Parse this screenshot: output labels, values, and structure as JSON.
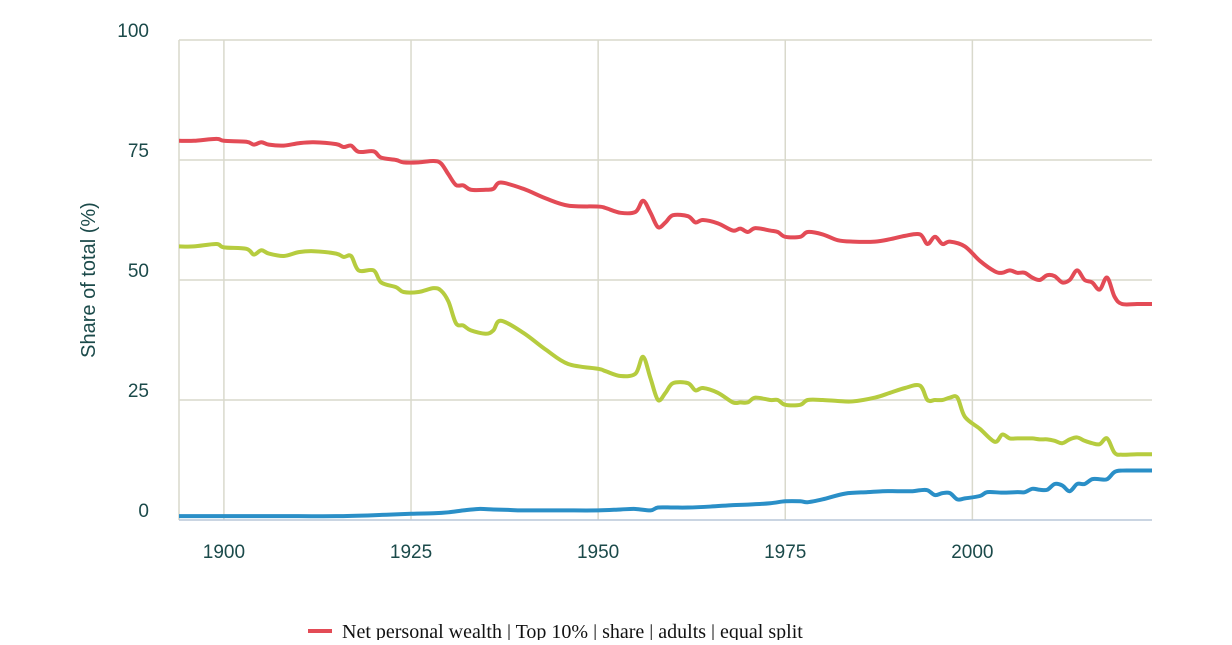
{
  "colors": {
    "text": "#1b4a4a",
    "grid": "#d9d9cc",
    "axis": "#b9c7d9",
    "legend_text": "#111111"
  },
  "chart_data": {
    "type": "line",
    "title": "",
    "xlabel": "",
    "ylabel": "Share of total (%)",
    "xlim": [
      1894,
      2024
    ],
    "ylim": [
      0,
      100
    ],
    "grid": true,
    "legend_position": "bottom",
    "x_ticks": [
      {
        "value": 1900,
        "label": "1900"
      },
      {
        "value": 1925,
        "label": "1925"
      },
      {
        "value": 1950,
        "label": "1950"
      },
      {
        "value": 1975,
        "label": "1975"
      },
      {
        "value": 2000,
        "label": "2000"
      }
    ],
    "y_ticks": [
      {
        "value": 0,
        "label": "0"
      },
      {
        "value": 25,
        "label": "25"
      },
      {
        "value": 50,
        "label": "50"
      },
      {
        "value": 75,
        "label": "75"
      },
      {
        "value": 100,
        "label": "100"
      }
    ],
    "legend": [
      {
        "label": "Net personal wealth | Top 10% | share | adults | equal split",
        "color": "#e34b56"
      }
    ],
    "series": [
      {
        "color": "#e34b56",
        "points": [
          [
            1894,
            79
          ],
          [
            1896,
            79
          ],
          [
            1899,
            79.4
          ],
          [
            1900,
            79
          ],
          [
            1903,
            78.8
          ],
          [
            1904,
            78.2
          ],
          [
            1905,
            78.7
          ],
          [
            1906,
            78.2
          ],
          [
            1908,
            78.0
          ],
          [
            1910,
            78.5
          ],
          [
            1912,
            78.7
          ],
          [
            1915,
            78.3
          ],
          [
            1916,
            77.7
          ],
          [
            1917,
            78.0
          ],
          [
            1918,
            76.7
          ],
          [
            1920,
            76.8
          ],
          [
            1921,
            75.5
          ],
          [
            1923,
            75.0
          ],
          [
            1924,
            74.5
          ],
          [
            1926,
            74.5
          ],
          [
            1928,
            74.8
          ],
          [
            1929,
            74.3
          ],
          [
            1930,
            72.0
          ],
          [
            1931,
            69.8
          ],
          [
            1932,
            69.7
          ],
          [
            1933,
            68.8
          ],
          [
            1935,
            68.8
          ],
          [
            1936,
            69.0
          ],
          [
            1937,
            70.3
          ],
          [
            1940,
            69.0
          ],
          [
            1943,
            67.0
          ],
          [
            1946,
            65.5
          ],
          [
            1950,
            65.3
          ],
          [
            1951,
            65.0
          ],
          [
            1953,
            64.0
          ],
          [
            1955,
            64.2
          ],
          [
            1956,
            66.5
          ],
          [
            1957,
            64.0
          ],
          [
            1958,
            61.0
          ],
          [
            1959,
            62.0
          ],
          [
            1960,
            63.5
          ],
          [
            1962,
            63.3
          ],
          [
            1963,
            62.0
          ],
          [
            1964,
            62.5
          ],
          [
            1966,
            61.8
          ],
          [
            1968,
            60.3
          ],
          [
            1969,
            60.7
          ],
          [
            1970,
            60.0
          ],
          [
            1971,
            60.8
          ],
          [
            1973,
            60.3
          ],
          [
            1974,
            60.0
          ],
          [
            1975,
            59.0
          ],
          [
            1977,
            59.0
          ],
          [
            1978,
            60.0
          ],
          [
            1980,
            59.5
          ],
          [
            1982,
            58.3
          ],
          [
            1984,
            58.0
          ],
          [
            1987,
            58.0
          ],
          [
            1989,
            58.5
          ],
          [
            1991,
            59.2
          ],
          [
            1993,
            59.5
          ],
          [
            1994,
            57.5
          ],
          [
            1995,
            59.0
          ],
          [
            1996,
            57.5
          ],
          [
            1997,
            58.0
          ],
          [
            1999,
            57.0
          ],
          [
            2001,
            54.0
          ],
          [
            2003,
            51.8
          ],
          [
            2004,
            51.5
          ],
          [
            2005,
            52.0
          ],
          [
            2006,
            51.5
          ],
          [
            2007,
            51.5
          ],
          [
            2008,
            50.5
          ],
          [
            2009,
            50.0
          ],
          [
            2010,
            51.0
          ],
          [
            2011,
            50.8
          ],
          [
            2012,
            49.5
          ],
          [
            2013,
            50.0
          ],
          [
            2014,
            52.0
          ],
          [
            2015,
            50.0
          ],
          [
            2016,
            49.5
          ],
          [
            2017,
            48.0
          ],
          [
            2018,
            50.5
          ],
          [
            2019,
            46.5
          ],
          [
            2020,
            45.0
          ],
          [
            2022,
            45.0
          ],
          [
            2024,
            45.0
          ]
        ]
      },
      {
        "color": "#b6cc3f",
        "points": [
          [
            1894,
            57
          ],
          [
            1896,
            57
          ],
          [
            1899,
            57.5
          ],
          [
            1900,
            56.8
          ],
          [
            1903,
            56.5
          ],
          [
            1904,
            55.3
          ],
          [
            1905,
            56.2
          ],
          [
            1906,
            55.5
          ],
          [
            1908,
            55.0
          ],
          [
            1910,
            55.8
          ],
          [
            1912,
            56.0
          ],
          [
            1915,
            55.5
          ],
          [
            1916,
            54.8
          ],
          [
            1917,
            55.0
          ],
          [
            1918,
            52.0
          ],
          [
            1920,
            52.0
          ],
          [
            1921,
            49.5
          ],
          [
            1923,
            48.5
          ],
          [
            1924,
            47.5
          ],
          [
            1926,
            47.5
          ],
          [
            1928,
            48.3
          ],
          [
            1929,
            47.8
          ],
          [
            1930,
            45.5
          ],
          [
            1931,
            41.0
          ],
          [
            1932,
            40.5
          ],
          [
            1933,
            39.5
          ],
          [
            1935,
            38.8
          ],
          [
            1936,
            39.5
          ],
          [
            1937,
            41.5
          ],
          [
            1940,
            39.0
          ],
          [
            1943,
            35.5
          ],
          [
            1946,
            32.5
          ],
          [
            1950,
            31.5
          ],
          [
            1951,
            31.0
          ],
          [
            1953,
            30.0
          ],
          [
            1955,
            30.5
          ],
          [
            1956,
            34.0
          ],
          [
            1957,
            29.5
          ],
          [
            1958,
            25.0
          ],
          [
            1959,
            26.5
          ],
          [
            1960,
            28.5
          ],
          [
            1962,
            28.5
          ],
          [
            1963,
            27.0
          ],
          [
            1964,
            27.5
          ],
          [
            1966,
            26.5
          ],
          [
            1968,
            24.5
          ],
          [
            1969,
            24.5
          ],
          [
            1970,
            24.5
          ],
          [
            1971,
            25.5
          ],
          [
            1973,
            25.0
          ],
          [
            1974,
            25.0
          ],
          [
            1975,
            24.0
          ],
          [
            1977,
            24.0
          ],
          [
            1978,
            25.0
          ],
          [
            1980,
            25.0
          ],
          [
            1982,
            24.8
          ],
          [
            1984,
            24.7
          ],
          [
            1987,
            25.5
          ],
          [
            1989,
            26.5
          ],
          [
            1991,
            27.5
          ],
          [
            1993,
            28.0
          ],
          [
            1994,
            25.0
          ],
          [
            1995,
            25.0
          ],
          [
            1996,
            25.0
          ],
          [
            1997,
            25.5
          ],
          [
            1998,
            25.5
          ],
          [
            1999,
            21.5
          ],
          [
            2001,
            19.0
          ],
          [
            2003,
            16.3
          ],
          [
            2004,
            17.8
          ],
          [
            2005,
            17.0
          ],
          [
            2006,
            17.0
          ],
          [
            2007,
            17.0
          ],
          [
            2008,
            17.0
          ],
          [
            2009,
            16.8
          ],
          [
            2010,
            16.8
          ],
          [
            2011,
            16.5
          ],
          [
            2012,
            16.0
          ],
          [
            2013,
            16.8
          ],
          [
            2014,
            17.2
          ],
          [
            2015,
            16.5
          ],
          [
            2016,
            16.0
          ],
          [
            2017,
            15.8
          ],
          [
            2018,
            17.0
          ],
          [
            2019,
            14.0
          ],
          [
            2020,
            13.6
          ],
          [
            2022,
            13.7
          ],
          [
            2024,
            13.7
          ]
        ]
      },
      {
        "color": "#2a8fc7",
        "points": [
          [
            1894,
            0.8
          ],
          [
            1900,
            0.8
          ],
          [
            1905,
            0.8
          ],
          [
            1910,
            0.8
          ],
          [
            1915,
            0.8
          ],
          [
            1920,
            1.0
          ],
          [
            1925,
            1.3
          ],
          [
            1928,
            1.4
          ],
          [
            1930,
            1.6
          ],
          [
            1932,
            2.0
          ],
          [
            1934,
            2.3
          ],
          [
            1936,
            2.2
          ],
          [
            1938,
            2.1
          ],
          [
            1940,
            2.0
          ],
          [
            1945,
            2.0
          ],
          [
            1950,
            2.0
          ],
          [
            1953,
            2.2
          ],
          [
            1955,
            2.3
          ],
          [
            1957,
            2.0
          ],
          [
            1958,
            2.6
          ],
          [
            1960,
            2.6
          ],
          [
            1962,
            2.6
          ],
          [
            1965,
            2.8
          ],
          [
            1968,
            3.1
          ],
          [
            1970,
            3.2
          ],
          [
            1973,
            3.5
          ],
          [
            1975,
            3.9
          ],
          [
            1977,
            3.9
          ],
          [
            1978,
            3.7
          ],
          [
            1980,
            4.3
          ],
          [
            1983,
            5.5
          ],
          [
            1986,
            5.8
          ],
          [
            1988,
            6.0
          ],
          [
            1990,
            6.0
          ],
          [
            1992,
            6.0
          ],
          [
            1993,
            6.2
          ],
          [
            1994,
            6.2
          ],
          [
            1995,
            5.2
          ],
          [
            1996,
            5.6
          ],
          [
            1997,
            5.6
          ],
          [
            1998,
            4.3
          ],
          [
            1999,
            4.5
          ],
          [
            2001,
            5.0
          ],
          [
            2002,
            5.8
          ],
          [
            2004,
            5.7
          ],
          [
            2006,
            5.8
          ],
          [
            2007,
            5.8
          ],
          [
            2008,
            6.5
          ],
          [
            2009,
            6.3
          ],
          [
            2010,
            6.3
          ],
          [
            2011,
            7.5
          ],
          [
            2012,
            7.2
          ],
          [
            2013,
            6.0
          ],
          [
            2014,
            7.5
          ],
          [
            2015,
            7.5
          ],
          [
            2016,
            8.5
          ],
          [
            2017,
            8.5
          ],
          [
            2018,
            8.5
          ],
          [
            2019,
            10.0
          ],
          [
            2020,
            10.3
          ],
          [
            2022,
            10.3
          ],
          [
            2024,
            10.3
          ]
        ]
      }
    ]
  }
}
